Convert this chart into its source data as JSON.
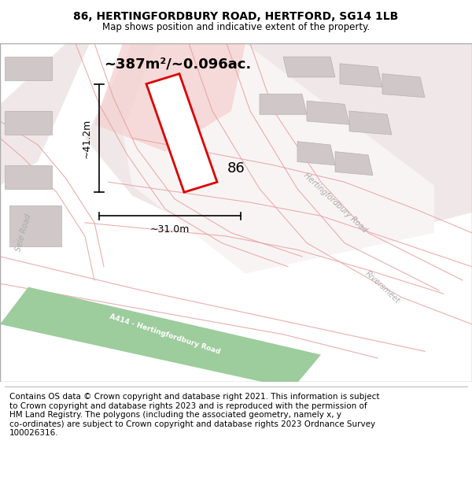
{
  "title_line1": "86, HERTINGFORDBURY ROAD, HERTFORD, SG14 1LB",
  "title_line2": "Map shows position and indicative extent of the property.",
  "area_text": "~387m²/~0.096ac.",
  "dim_height": "~41.2m",
  "dim_width": "~31.0m",
  "label_86": "86",
  "road_label1": "Hertingfordbury Road",
  "road_label2": "A414 - Hertingfordbury Road",
  "road_label3": "Riversmeet",
  "road_label4": "Sele Road",
  "footer_text": "Contains OS data © Crown copyright and database right 2021. This information is subject\nto Crown copyright and database rights 2023 and is reproduced with the permission of\nHM Land Registry. The polygons (including the associated geometry, namely x, y\nco-ordinates) are subject to Crown copyright and database rights 2023 Ordnance Survey\n100026316.",
  "bg_color": "#ffffff",
  "map_bg": "#f7f2f2",
  "red_plot_color": "#dd0000",
  "green_road_color": "#9dcc9d",
  "building_fill": "#d0c8c8",
  "building_edge": "#b8b0b0",
  "pink_road_color": "#e8a0a0",
  "title_fontsize": 10,
  "footer_fontsize": 7.5
}
